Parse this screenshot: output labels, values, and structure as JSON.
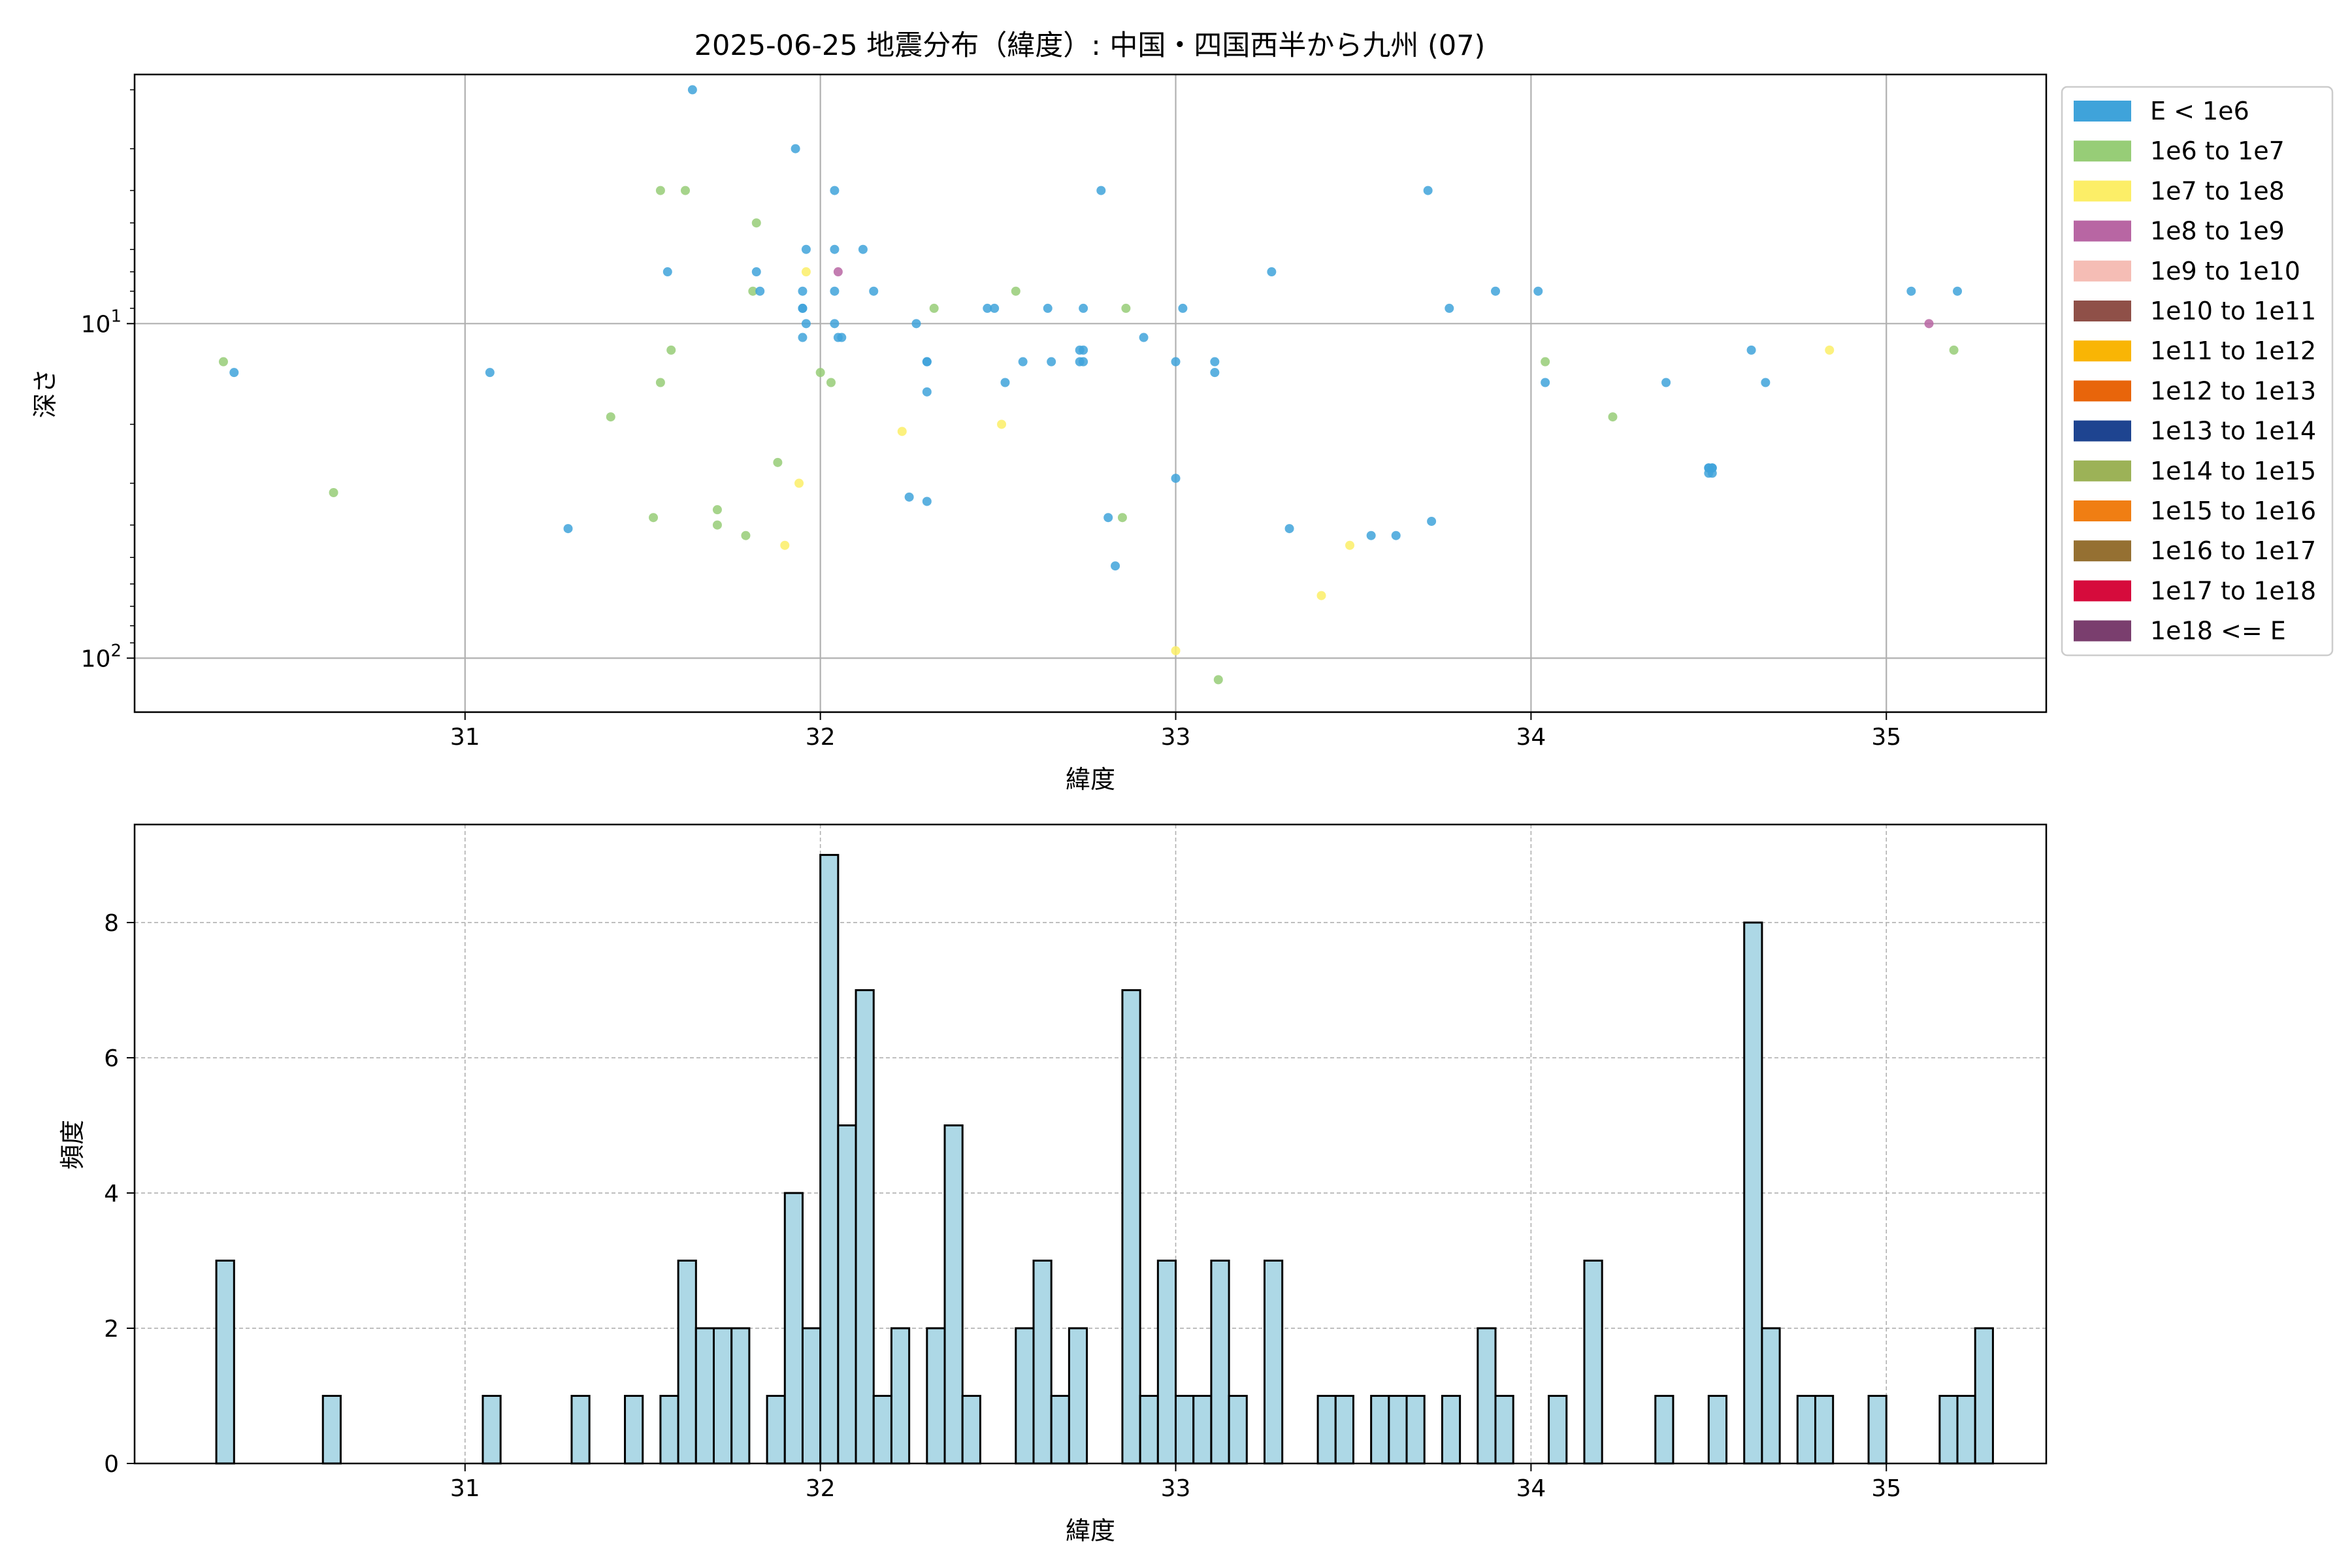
{
  "figure": {
    "title": "2025-06-25 地震分布（緯度）: 中国・四国西半から九州 (07)"
  },
  "chart_data": [
    {
      "type": "scatter",
      "title": "2025-06-25 地震分布（緯度）: 中国・四国西半から九州 (07)",
      "xlabel": "緯度",
      "ylabel": "深さ",
      "xlim": [
        30.07,
        35.45
      ],
      "ylim": [
        145,
        1.8
      ],
      "yscale": "log",
      "y_inverted": true,
      "xticks": [
        31,
        32,
        33,
        34,
        35
      ],
      "yticks": [
        {
          "value": 10,
          "label": "10^1"
        },
        {
          "value": 100,
          "label": "10^2"
        }
      ],
      "grid": true,
      "legend_position": "outside right",
      "legend": [
        {
          "label": "E < 1e6",
          "color": "#3fa3da"
        },
        {
          "label": "1e6 to 1e7",
          "color": "#97cd77"
        },
        {
          "label": "1e7 to 1e8",
          "color": "#fcee67"
        },
        {
          "label": "1e8 to 1e9",
          "color": "#b866a3"
        },
        {
          "label": "1e9 to 1e10",
          "color": "#f5bdb5"
        },
        {
          "label": "1e10 to 1e11",
          "color": "#8f5048"
        },
        {
          "label": "1e11 to 1e12",
          "color": "#f9b505"
        },
        {
          "label": "1e12 to 1e13",
          "color": "#e8650b"
        },
        {
          "label": "1e13 to 1e14",
          "color": "#1e4490"
        },
        {
          "label": "1e14 to 1e15",
          "color": "#9cb257"
        },
        {
          "label": "1e15 to 1e16",
          "color": "#f07e13"
        },
        {
          "label": "1e16 to 1e17",
          "color": "#957032"
        },
        {
          "label": "1e17 to 1e18",
          "color": "#d60b3c"
        },
        {
          "label": "1e18 <= E",
          "color": "#7a3e6e"
        }
      ],
      "points": [
        {
          "x": 30.32,
          "y": 13,
          "c": 1
        },
        {
          "x": 30.35,
          "y": 14,
          "c": 0
        },
        {
          "x": 30.63,
          "y": 32,
          "c": 1
        },
        {
          "x": 31.07,
          "y": 14,
          "c": 0
        },
        {
          "x": 31.29,
          "y": 41,
          "c": 0
        },
        {
          "x": 31.41,
          "y": 19,
          "c": 1
        },
        {
          "x": 31.53,
          "y": 38,
          "c": 1
        },
        {
          "x": 31.55,
          "y": 4,
          "c": 1
        },
        {
          "x": 31.55,
          "y": 15,
          "c": 1
        },
        {
          "x": 31.57,
          "y": 7,
          "c": 0
        },
        {
          "x": 31.58,
          "y": 12,
          "c": 1
        },
        {
          "x": 31.62,
          "y": 4,
          "c": 1
        },
        {
          "x": 31.64,
          "y": 2,
          "c": 0
        },
        {
          "x": 31.71,
          "y": 36,
          "c": 1
        },
        {
          "x": 31.71,
          "y": 40,
          "c": 1
        },
        {
          "x": 31.79,
          "y": 43,
          "c": 1
        },
        {
          "x": 31.81,
          "y": 8,
          "c": 1
        },
        {
          "x": 31.82,
          "y": 5,
          "c": 1
        },
        {
          "x": 31.82,
          "y": 7,
          "c": 0
        },
        {
          "x": 31.83,
          "y": 8,
          "c": 0
        },
        {
          "x": 31.88,
          "y": 26,
          "c": 1
        },
        {
          "x": 31.9,
          "y": 46,
          "c": 2
        },
        {
          "x": 31.93,
          "y": 3,
          "c": 0
        },
        {
          "x": 31.94,
          "y": 30,
          "c": 2
        },
        {
          "x": 31.95,
          "y": 11,
          "c": 0
        },
        {
          "x": 31.95,
          "y": 9,
          "c": 0
        },
        {
          "x": 31.95,
          "y": 9,
          "c": 0
        },
        {
          "x": 31.95,
          "y": 8,
          "c": 0
        },
        {
          "x": 31.96,
          "y": 7,
          "c": 2
        },
        {
          "x": 31.96,
          "y": 6,
          "c": 0
        },
        {
          "x": 31.96,
          "y": 10,
          "c": 0
        },
        {
          "x": 32.0,
          "y": 14,
          "c": 1
        },
        {
          "x": 32.03,
          "y": 15,
          "c": 1
        },
        {
          "x": 32.04,
          "y": 6,
          "c": 0
        },
        {
          "x": 32.04,
          "y": 4,
          "c": 0
        },
        {
          "x": 32.04,
          "y": 8,
          "c": 0
        },
        {
          "x": 32.04,
          "y": 10,
          "c": 0
        },
        {
          "x": 32.05,
          "y": 11,
          "c": 0
        },
        {
          "x": 32.06,
          "y": 11,
          "c": 0
        },
        {
          "x": 32.05,
          "y": 7,
          "c": 3
        },
        {
          "x": 32.12,
          "y": 6,
          "c": 0
        },
        {
          "x": 32.15,
          "y": 8,
          "c": 0
        },
        {
          "x": 32.23,
          "y": 21,
          "c": 2
        },
        {
          "x": 32.25,
          "y": 33,
          "c": 0
        },
        {
          "x": 32.27,
          "y": 10,
          "c": 0
        },
        {
          "x": 32.3,
          "y": 13,
          "c": 0
        },
        {
          "x": 32.3,
          "y": 16,
          "c": 0
        },
        {
          "x": 32.3,
          "y": 34,
          "c": 0
        },
        {
          "x": 32.3,
          "y": 13,
          "c": 0
        },
        {
          "x": 32.32,
          "y": 9,
          "c": 1
        },
        {
          "x": 32.47,
          "y": 9,
          "c": 0
        },
        {
          "x": 32.49,
          "y": 9,
          "c": 0
        },
        {
          "x": 32.51,
          "y": 20,
          "c": 2
        },
        {
          "x": 32.52,
          "y": 15,
          "c": 0
        },
        {
          "x": 32.55,
          "y": 8,
          "c": 1
        },
        {
          "x": 32.57,
          "y": 13,
          "c": 0
        },
        {
          "x": 32.64,
          "y": 9,
          "c": 0
        },
        {
          "x": 32.65,
          "y": 13,
          "c": 0
        },
        {
          "x": 32.73,
          "y": 12,
          "c": 0
        },
        {
          "x": 32.73,
          "y": 13,
          "c": 0
        },
        {
          "x": 32.74,
          "y": 12,
          "c": 0
        },
        {
          "x": 32.74,
          "y": 9,
          "c": 0
        },
        {
          "x": 32.74,
          "y": 13,
          "c": 0
        },
        {
          "x": 32.79,
          "y": 4,
          "c": 0
        },
        {
          "x": 32.81,
          "y": 38,
          "c": 0
        },
        {
          "x": 32.83,
          "y": 53,
          "c": 0
        },
        {
          "x": 32.85,
          "y": 38,
          "c": 1
        },
        {
          "x": 32.86,
          "y": 9,
          "c": 1
        },
        {
          "x": 32.91,
          "y": 11,
          "c": 0
        },
        {
          "x": 33.0,
          "y": 13,
          "c": 0
        },
        {
          "x": 33.0,
          "y": 29,
          "c": 0
        },
        {
          "x": 33.0,
          "y": 95,
          "c": 2
        },
        {
          "x": 33.02,
          "y": 9,
          "c": 0
        },
        {
          "x": 33.11,
          "y": 13,
          "c": 0
        },
        {
          "x": 33.11,
          "y": 14,
          "c": 0
        },
        {
          "x": 33.12,
          "y": 116,
          "c": 1
        },
        {
          "x": 33.27,
          "y": 7,
          "c": 0
        },
        {
          "x": 33.32,
          "y": 41,
          "c": 0
        },
        {
          "x": 33.41,
          "y": 65,
          "c": 2
        },
        {
          "x": 33.49,
          "y": 46,
          "c": 2
        },
        {
          "x": 33.55,
          "y": 43,
          "c": 0
        },
        {
          "x": 33.62,
          "y": 43,
          "c": 0
        },
        {
          "x": 33.71,
          "y": 4,
          "c": 0
        },
        {
          "x": 33.72,
          "y": 39,
          "c": 0
        },
        {
          "x": 33.77,
          "y": 9,
          "c": 0
        },
        {
          "x": 33.9,
          "y": 8,
          "c": 0
        },
        {
          "x": 34.02,
          "y": 8,
          "c": 0
        },
        {
          "x": 34.04,
          "y": 15,
          "c": 0
        },
        {
          "x": 34.04,
          "y": 13,
          "c": 1
        },
        {
          "x": 34.23,
          "y": 19,
          "c": 1
        },
        {
          "x": 34.38,
          "y": 15,
          "c": 0
        },
        {
          "x": 34.5,
          "y": 28,
          "c": 0
        },
        {
          "x": 34.5,
          "y": 27,
          "c": 0
        },
        {
          "x": 34.51,
          "y": 27,
          "c": 0
        },
        {
          "x": 34.51,
          "y": 28,
          "c": 0
        },
        {
          "x": 34.51,
          "y": 27,
          "c": 0
        },
        {
          "x": 34.5,
          "y": 27,
          "c": 0
        },
        {
          "x": 34.62,
          "y": 12,
          "c": 0
        },
        {
          "x": 34.66,
          "y": 15,
          "c": 0
        },
        {
          "x": 34.84,
          "y": 12,
          "c": 2
        },
        {
          "x": 35.07,
          "y": 8,
          "c": 0
        },
        {
          "x": 35.12,
          "y": 10,
          "c": 3
        },
        {
          "x": 35.19,
          "y": 12,
          "c": 1
        },
        {
          "x": 35.2,
          "y": 8,
          "c": 0
        }
      ]
    },
    {
      "type": "bar",
      "subtype": "histogram",
      "xlabel": "緯度",
      "ylabel": "頻度",
      "xlim": [
        30.07,
        35.45
      ],
      "ylim": [
        0,
        9.45
      ],
      "xticks": [
        31,
        32,
        33,
        34,
        35
      ],
      "yticks": [
        0,
        2,
        4,
        6,
        8
      ],
      "grid": true,
      "bar_color": "#add8e6",
      "edge_color": "#000000",
      "bin_start": 30.3,
      "bin_width": 0.05,
      "counts": [
        3,
        0,
        0,
        0,
        0,
        0,
        1,
        0,
        0,
        0,
        0,
        0,
        0,
        0,
        0,
        1,
        0,
        0,
        0,
        0,
        1,
        0,
        0,
        1,
        0,
        1,
        3,
        2,
        2,
        2,
        0,
        1,
        4,
        2,
        9,
        5,
        7,
        1,
        2,
        0,
        2,
        5,
        1,
        0,
        0,
        2,
        3,
        1,
        2,
        0,
        0,
        7,
        1,
        3,
        1,
        1,
        3,
        1,
        0,
        3,
        0,
        0,
        1,
        1,
        0,
        1,
        1,
        1,
        0,
        1,
        0,
        2,
        1,
        0,
        0,
        1,
        0,
        3,
        0,
        0,
        0,
        1,
        0,
        0,
        1,
        0,
        8,
        2,
        0,
        1,
        1,
        0,
        0,
        1,
        0,
        0,
        0,
        1,
        1,
        2
      ]
    }
  ]
}
